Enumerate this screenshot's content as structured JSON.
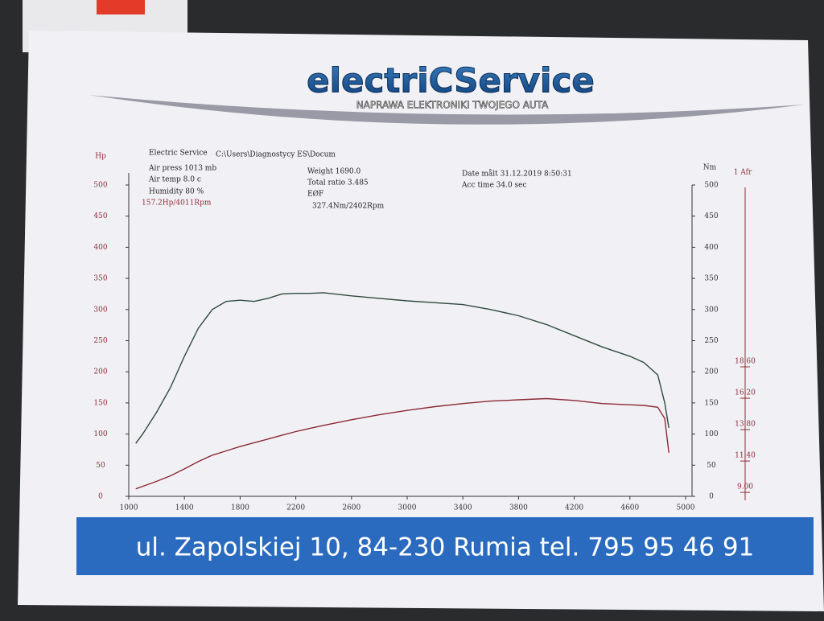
{
  "header": {
    "logo": "electriCService",
    "tagline": "NAPRAWA ELEKTRONIKI TWOJEGO AUTA"
  },
  "info": {
    "company": "Electric Service",
    "path": "C:\\Users\\Diagnostycy ES\\Docum",
    "air_press": "Air press  1013 mb",
    "air_temp": "Air temp    8.0 c",
    "humidity": "Humidity    80 %",
    "power_peak": "157.2Hp/4011Rpm",
    "weight": "Weight   1690.0",
    "ratio": "Total ratio 3.485",
    "eof": "EØF",
    "torque_peak": "327.4Nm/2402Rpm",
    "date": "Date målt 31.12.2019 8:50:31",
    "acc_time": "Acc time   34.0 sec"
  },
  "chart_data": {
    "type": "line",
    "ylabel": "Hp",
    "y2label": "Nm",
    "y3label": "1 Afr",
    "x": [
      1050,
      1100,
      1200,
      1300,
      1400,
      1500,
      1600,
      1700,
      1800,
      1900,
      2000,
      2100,
      2200,
      2300,
      2400,
      2600,
      2800,
      3000,
      3200,
      3400,
      3600,
      3800,
      4000,
      4200,
      4400,
      4600,
      4700,
      4800,
      4850,
      4880
    ],
    "series": [
      {
        "name": "Hp",
        "color": "#8b2a35",
        "axis": "y",
        "values": [
          12,
          16,
          24,
          33,
          44,
          56,
          66,
          73,
          80,
          86,
          92,
          98,
          104,
          109,
          114,
          123,
          131,
          138,
          144,
          149,
          153,
          155,
          157,
          154,
          149,
          147,
          146,
          143,
          125,
          70
        ]
      },
      {
        "name": "Nm",
        "color": "#2f4a3c",
        "axis": "y2",
        "values": [
          85,
          100,
          135,
          175,
          225,
          270,
          300,
          313,
          315,
          313,
          318,
          325,
          326,
          326,
          327,
          322,
          318,
          314,
          311,
          308,
          300,
          290,
          276,
          258,
          240,
          225,
          215,
          195,
          150,
          110
        ]
      }
    ],
    "xlim": [
      1000,
      5000
    ],
    "xticks": [
      1000,
      1400,
      1800,
      2200,
      2600,
      3000,
      3400,
      3800,
      4200,
      4600,
      5000
    ],
    "ylim": [
      0,
      500
    ],
    "yticks": [
      0,
      50,
      100,
      150,
      200,
      250,
      300,
      350,
      400,
      450,
      500
    ],
    "y2lim": [
      0,
      500
    ],
    "y2ticks": [
      0,
      50,
      100,
      150,
      200,
      250,
      300,
      350,
      400,
      450,
      500
    ],
    "y3lim": [
      8.7,
      32.5
    ],
    "y3ticks": [
      {
        "value": 9,
        "label": "9.00"
      },
      {
        "value": 11.4,
        "label": "11.40"
      },
      {
        "value": 13.8,
        "label": "13.80"
      },
      {
        "value": 16.2,
        "label": "16.20"
      },
      {
        "value": 18.6,
        "label": "18.60"
      }
    ]
  },
  "footer": {
    "address": "ul. Zapolskiej 10, 84-230 Rumia tel. 795 95 46 91"
  }
}
